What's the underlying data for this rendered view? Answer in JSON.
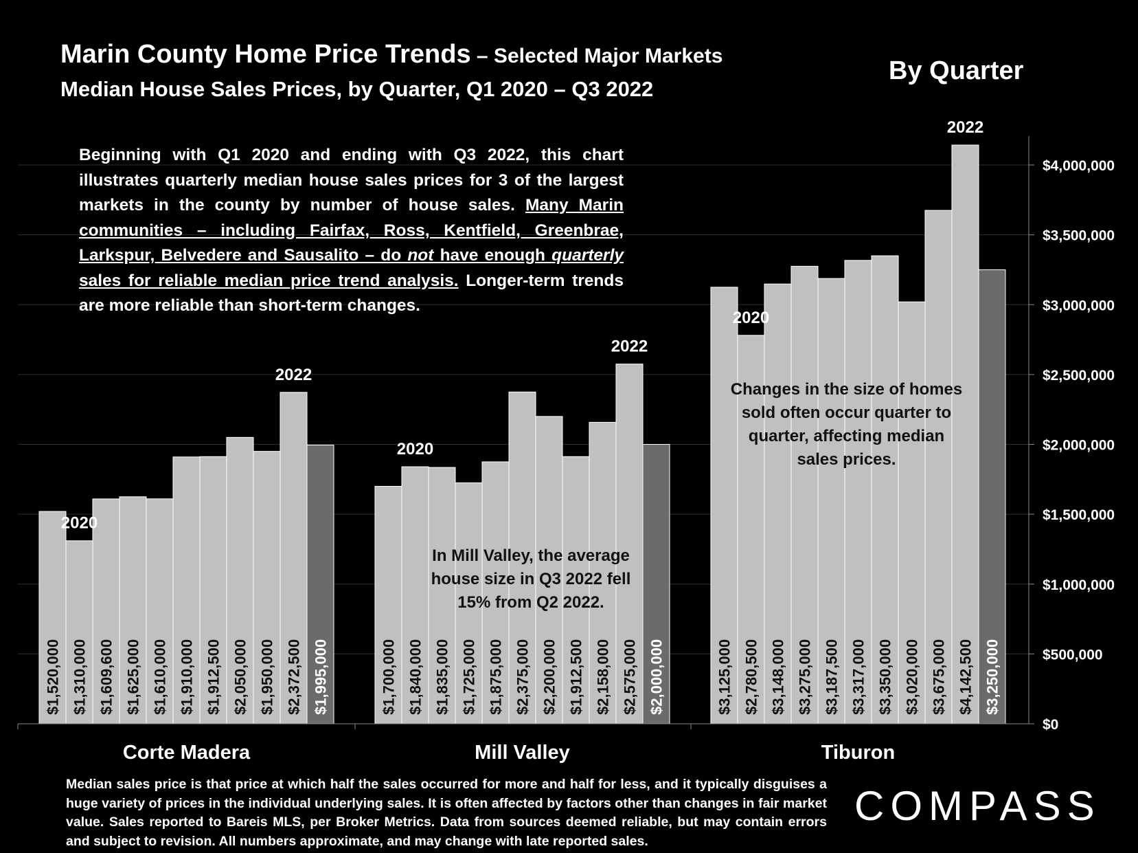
{
  "title_main": "Marin County Home Price Trends",
  "title_suffix": " – Selected Major Markets",
  "subtitle": "Median House Sales Prices, by Quarter, Q1 2020 – Q3 2022",
  "by_quarter": "By Quarter",
  "intro": {
    "part1": "Beginning with Q1 2020 and ending with Q3 2022, this chart illustrates quarterly median house sales prices for 3 of the largest markets in the county by number of house sales. ",
    "u1": "Many Marin communities – including Fairfax, Ross, Kentfield, Greenbrae, Larkspur, Belvedere and Sausalito – do ",
    "u_not": "not",
    "u2": " have enough ",
    "u_quarterly": "quarterly",
    "u3": " sales for reliable median price trend analysis.",
    "part2": " Longer-term trends are more reliable than short-term changes."
  },
  "note_mill_valley": "In Mill Valley, the average house size in Q3 2022 fell 15% from Q2 2022.",
  "note_tiburon": "Changes in the size of homes sold often occur quarter to quarter, affecting median sales prices.",
  "footer": "Median sales price is that price at which half the sales occurred for more and half for less, and it typically disguises a huge variety of prices in the individual underlying sales. It is often affected by factors other than changes in fair market value. Sales reported to Bareis MLS, per Broker Metrics. Data from sources deemed reliable, but may contain errors and subject to revision. All numbers approximate, and may change with late reported sales.",
  "logo": "COMPASS",
  "colors": {
    "background": "#000000",
    "bar": "#c0c0c0",
    "bar_latest": "#6b6b6b",
    "text": "#ffffff",
    "note_text": "#111111"
  },
  "chart_data": {
    "type": "bar",
    "y_axis_side": "right",
    "ylim": [
      0,
      4200000
    ],
    "y_ticks": [
      0,
      500000,
      1000000,
      1500000,
      2000000,
      2500000,
      3000000,
      3500000,
      4000000
    ],
    "y_tick_labels": [
      "$0",
      "$500,000",
      "$1,000,000",
      "$1,500,000",
      "$2,000,000",
      "$2,500,000",
      "$3,000,000",
      "$3,500,000",
      "$4,000,000"
    ],
    "grid": true,
    "groups": [
      {
        "name": "Corte Madera",
        "values": [
          1520000,
          1310000,
          1609600,
          1625000,
          1610000,
          1910000,
          1912500,
          2050000,
          1950000,
          2372500,
          1995000
        ],
        "value_labels": [
          "$1,520,000",
          "$1,310,000",
          "$1,609,600",
          "$1,625,000",
          "$1,610,000",
          "$1,910,000",
          "$1,912,500",
          "$2,050,000",
          "$1,950,000",
          "$2,372,500",
          "$1,995,000"
        ],
        "year_labels": [
          {
            "text": "2020",
            "bar": 1
          },
          {
            "text": "2022",
            "bar": 9
          }
        ]
      },
      {
        "name": "Mill Valley",
        "values": [
          1700000,
          1840000,
          1835000,
          1725000,
          1875000,
          2375000,
          2200000,
          1912500,
          2158000,
          2575000,
          2000000
        ],
        "value_labels": [
          "$1,700,000",
          "$1,840,000",
          "$1,835,000",
          "$1,725,000",
          "$1,875,000",
          "$2,375,000",
          "$2,200,000",
          "$1,912,500",
          "$2,158,000",
          "$2,575,000",
          "$2,000,000"
        ],
        "year_labels": [
          {
            "text": "2020",
            "bar": 1
          },
          {
            "text": "2022",
            "bar": 9
          }
        ]
      },
      {
        "name": "Tiburon",
        "values": [
          3125000,
          2780500,
          3148000,
          3275000,
          3187500,
          3317000,
          3350000,
          3020000,
          3675000,
          4142500,
          3250000
        ],
        "value_labels": [
          "$3,125,000",
          "$2,780,500",
          "$3,148,000",
          "$3,275,000",
          "$3,187,500",
          "$3,317,000",
          "$3,350,000",
          "$3,020,000",
          "$3,675,000",
          "$4,142,500",
          "$3,250,000"
        ],
        "year_labels": [
          {
            "text": "2020",
            "bar": 1
          },
          {
            "text": "2022",
            "bar": 9
          }
        ]
      }
    ]
  }
}
